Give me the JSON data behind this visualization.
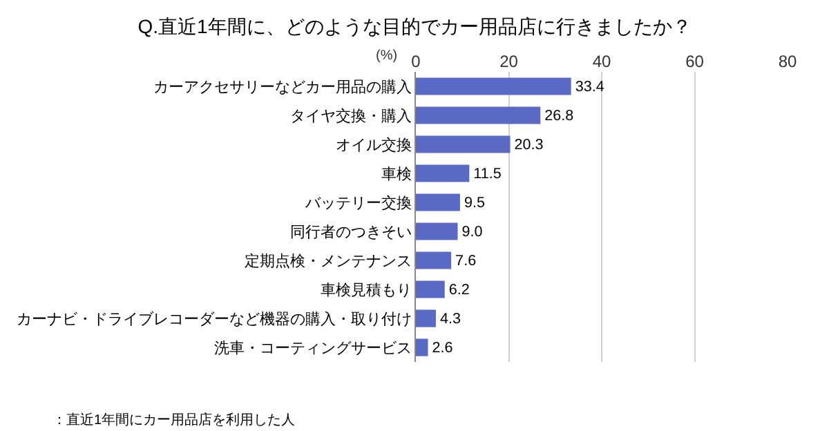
{
  "chart_data": {
    "type": "bar",
    "orientation": "horizontal",
    "title": "Q.直近1年間に、どのような目的でカー用品店に行きましたか？",
    "xlabel": "(%)",
    "categories": [
      "カーアクセサリーなどカー用品の購入",
      "タイヤ交換・購入",
      "オイル交換",
      "車検",
      "バッテリー交換",
      "同行者のつきそい",
      "定期点検・メンテナンス",
      "車検見積もり",
      "カーナビ・ドライブレコーダーなど機器の購入・取り付け",
      "洗車・コーティングサービス"
    ],
    "values": [
      33.4,
      26.8,
      20.3,
      11.5,
      9.5,
      9.0,
      7.6,
      6.2,
      4.3,
      2.6
    ],
    "value_labels": [
      "33.4",
      "26.8",
      "20.3",
      "11.5",
      "9.5",
      "9.0",
      "7.6",
      "6.2",
      "4.3",
      "2.6"
    ],
    "color": "#5a69c4",
    "xlim": [
      0,
      80
    ],
    "xticks": [
      0,
      20,
      40,
      60,
      80
    ],
    "grid": "x",
    "annotations": [
      "：直近1年間にカー用品店を利用した人"
    ]
  }
}
